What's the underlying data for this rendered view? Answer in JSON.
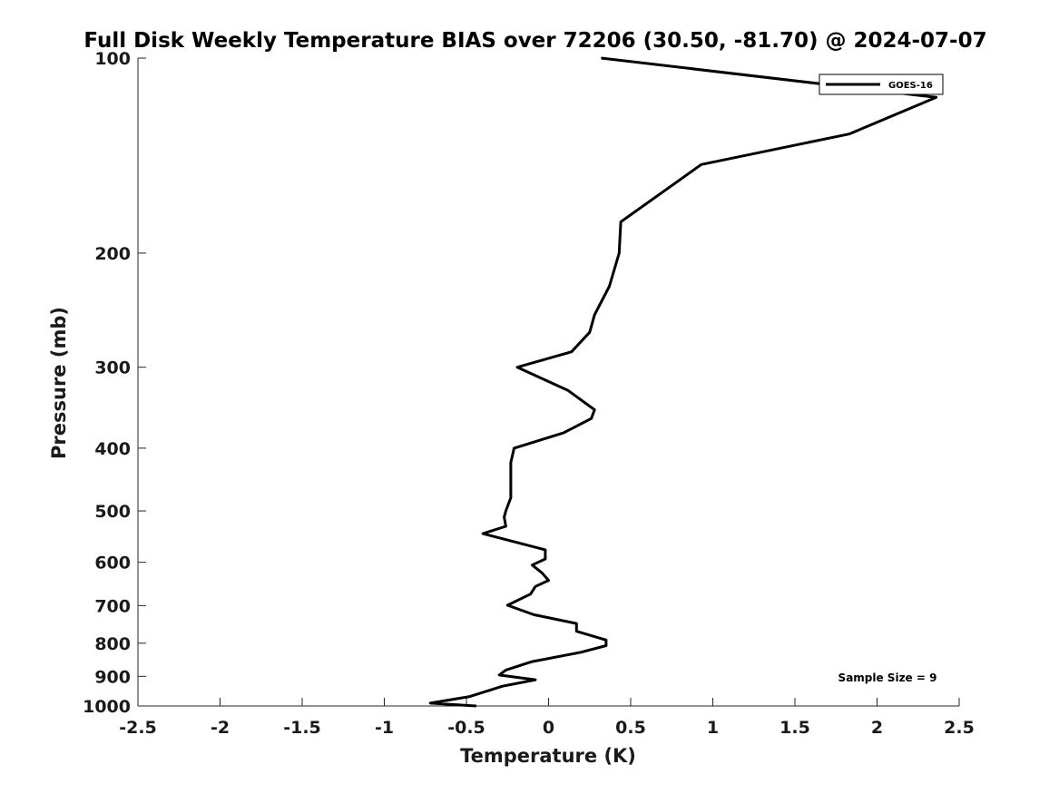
{
  "chart_data": {
    "type": "line",
    "title": "Full Disk Weekly Temperature BIAS over 72206 (30.50, -81.70) @ 2024-07-07",
    "xlabel": "Temperature (K)",
    "ylabel": "Pressure (mb)",
    "xlim": [
      -2.5,
      2.5
    ],
    "ylim": [
      100,
      1000
    ],
    "y_scale": "log",
    "y_reversed": true,
    "x_ticks": [
      -2.5,
      -2,
      -1.5,
      -1,
      -0.5,
      0,
      0.5,
      1,
      1.5,
      2,
      2.5
    ],
    "x_tick_labels": [
      "-2.5",
      "-2",
      "-1.5",
      "-1",
      "-0.5",
      "0",
      "0.5",
      "1",
      "1.5",
      "2",
      "2.5"
    ],
    "y_ticks": [
      100,
      200,
      300,
      400,
      500,
      600,
      700,
      800,
      900,
      1000
    ],
    "y_tick_labels": [
      "100",
      "200",
      "300",
      "400",
      "500",
      "600",
      "700",
      "800",
      "900",
      "1000"
    ],
    "grid": false,
    "legend_position": "top-right",
    "annotation": "Sample Size = 9",
    "series": [
      {
        "name": "GOES-16",
        "color": "#000000",
        "x": [
          0.32,
          2.36,
          1.83,
          0.93,
          0.44,
          0.43,
          0.37,
          0.28,
          0.25,
          0.14,
          -0.19,
          0.12,
          0.28,
          0.26,
          0.09,
          -0.21,
          -0.23,
          -0.23,
          -0.23,
          -0.23,
          -0.26,
          -0.27,
          -0.26,
          -0.4,
          -0.02,
          -0.02,
          -0.1,
          -0.04,
          0.0,
          -0.08,
          -0.11,
          -0.25,
          -0.09,
          0.17,
          0.17,
          0.35,
          0.35,
          0.2,
          -0.1,
          -0.26,
          -0.3,
          -0.08,
          -0.28,
          -0.48,
          -0.72,
          -0.44
        ],
        "y": [
          100,
          115,
          131,
          146,
          179,
          200,
          225,
          249,
          265,
          284,
          300,
          326,
          349,
          360,
          379,
          400,
          421,
          441,
          461,
          477,
          500,
          511,
          528,
          542,
          574,
          593,
          606,
          623,
          640,
          654,
          672,
          699,
          723,
          746,
          767,
          791,
          807,
          826,
          854,
          880,
          896,
          911,
          932,
          967,
          990,
          1000
        ]
      }
    ]
  }
}
